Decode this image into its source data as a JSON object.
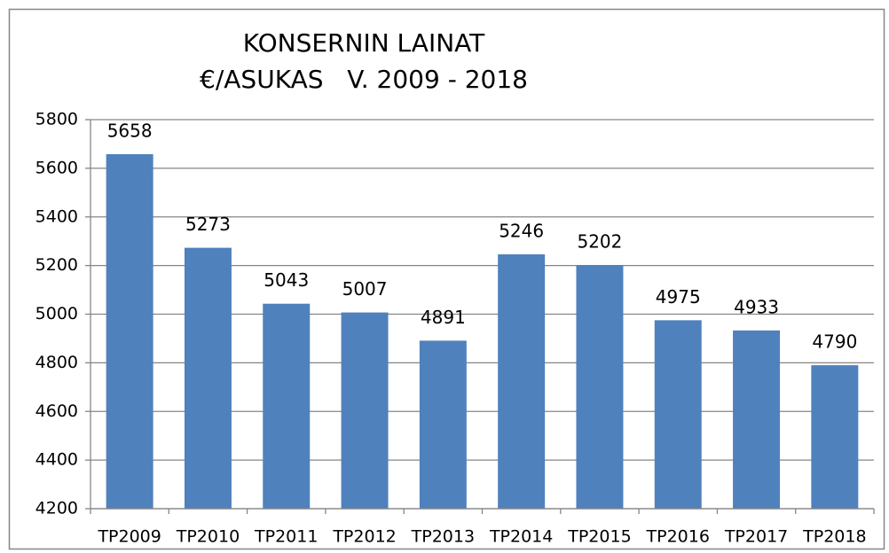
{
  "chart_data": {
    "type": "bar",
    "title": [
      "KONSERNIN LAINAT",
      "€/ASUKAS   V. 2009 - 2018"
    ],
    "categories": [
      "TP2009",
      "TP2010",
      "TP2011",
      "TP2012",
      "TP2013",
      "TP2014",
      "TP2015",
      "TP2016",
      "TP2017",
      "TP2018"
    ],
    "values": [
      5658,
      5273,
      5043,
      5007,
      4891,
      5246,
      5202,
      4975,
      4933,
      4790
    ],
    "color": "#4f81bd",
    "ylim": [
      4200,
      5800
    ],
    "yticks": [
      4200,
      4400,
      4600,
      4800,
      5000,
      5200,
      5400,
      5600,
      5800
    ],
    "grid": true
  }
}
